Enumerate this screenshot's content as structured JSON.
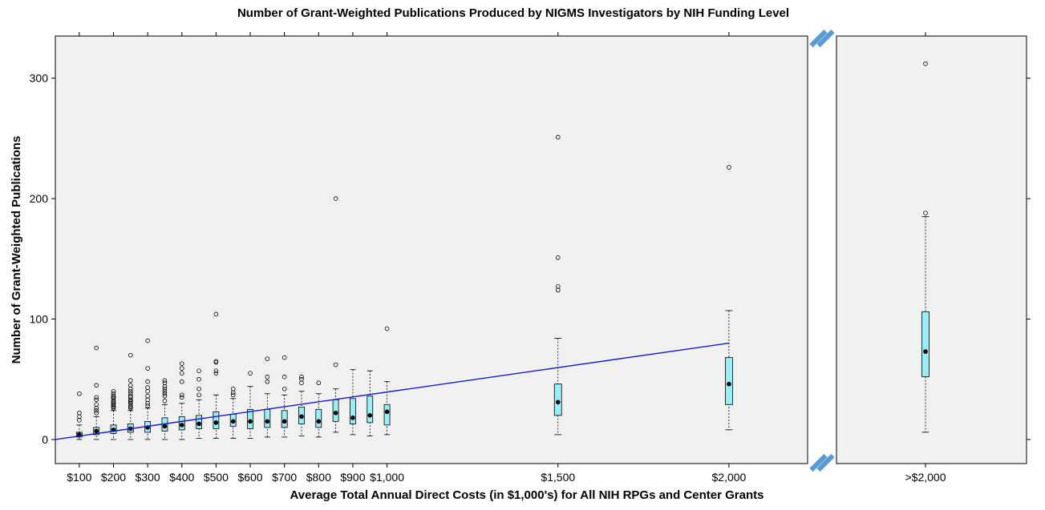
{
  "chart_data": {
    "type": "boxplot",
    "title": "Number of Grant-Weighted Publications Produced by NIGMS Investigators by NIH Funding Level",
    "xlabel": "Average Total Annual Direct Costs (in $1,000's) for All NIH RPGs and Center Grants",
    "ylabel": "Number of Grant-Weighted Publications",
    "xlim": [
      30,
      2230
    ],
    "ylim": [
      -20,
      335
    ],
    "x_ticks": [
      100,
      200,
      300,
      400,
      500,
      600,
      700,
      800,
      900,
      1000,
      1500,
      2000
    ],
    "x_tick_labels": [
      "$100",
      "$200",
      "$300",
      "$400",
      "$500",
      "$600",
      "$700",
      "$800",
      "$900",
      "$1,000",
      "$1,500",
      "$2,000"
    ],
    "y_ticks": [
      0,
      100,
      200,
      300
    ],
    "y_tick_labels": [
      "0",
      "100",
      "200",
      "300"
    ],
    "broken_axis_category": ">$2,000",
    "grid": false,
    "colors": {
      "panel": "#f1f1f1",
      "box_fill": "#99eef8",
      "trend_line": "#1a1ad6",
      "break_marker": "#5b9bd5"
    },
    "trend_line": {
      "x": [
        30,
        2000
      ],
      "y": [
        0,
        80
      ]
    },
    "boxes": [
      {
        "x": 100,
        "q1": 2,
        "median": 4,
        "q3": 6,
        "whisker_low": 0,
        "whisker_high": 12,
        "outliers": [
          16,
          19,
          22,
          38
        ]
      },
      {
        "x": 150,
        "q1": 4,
        "median": 7,
        "q3": 10,
        "whisker_low": 0,
        "whisker_high": 19,
        "outliers": [
          22,
          24,
          26,
          29,
          33,
          35,
          45,
          76
        ]
      },
      {
        "x": 200,
        "q1": 5,
        "median": 8,
        "q3": 12,
        "whisker_low": 0,
        "whisker_high": 24,
        "outliers": [
          26,
          27,
          28,
          29,
          30,
          31,
          32,
          34,
          35,
          36,
          38,
          40
        ]
      },
      {
        "x": 250,
        "q1": 6,
        "median": 9,
        "q3": 13,
        "whisker_low": 0,
        "whisker_high": 24,
        "outliers": [
          26,
          27,
          28,
          30,
          31,
          32,
          33,
          35,
          36,
          38,
          40,
          42,
          45,
          49,
          70
        ]
      },
      {
        "x": 300,
        "q1": 6,
        "median": 10,
        "q3": 15,
        "whisker_low": 0,
        "whisker_high": 26,
        "outliers": [
          28,
          30,
          33,
          36,
          40,
          43,
          48,
          59,
          82
        ]
      },
      {
        "x": 350,
        "q1": 7,
        "median": 11,
        "q3": 18,
        "whisker_low": 0,
        "whisker_high": 29,
        "outliers": [
          32,
          36,
          38,
          40,
          42,
          44,
          47,
          49
        ]
      },
      {
        "x": 400,
        "q1": 8,
        "median": 12,
        "q3": 19,
        "whisker_low": 0,
        "whisker_high": 30,
        "outliers": [
          35,
          37,
          48,
          55,
          59,
          63
        ]
      },
      {
        "x": 450,
        "q1": 9,
        "median": 13,
        "q3": 20,
        "whisker_low": 1,
        "whisker_high": 33,
        "outliers": [
          37,
          42,
          50,
          57
        ]
      },
      {
        "x": 500,
        "q1": 9,
        "median": 14,
        "q3": 23,
        "whisker_low": 1,
        "whisker_high": 37,
        "outliers": [
          55,
          57,
          64,
          65,
          104
        ]
      },
      {
        "x": 550,
        "q1": 11,
        "median": 15,
        "q3": 21,
        "whisker_low": 1,
        "whisker_high": 34,
        "outliers": [
          37,
          39,
          42
        ]
      },
      {
        "x": 600,
        "q1": 9,
        "median": 15,
        "q3": 25,
        "whisker_low": 1,
        "whisker_high": 44,
        "outliers": [
          55
        ]
      },
      {
        "x": 650,
        "q1": 10,
        "median": 15,
        "q3": 25,
        "whisker_low": 2,
        "whisker_high": 38,
        "outliers": [
          48,
          52,
          67
        ]
      },
      {
        "x": 700,
        "q1": 10,
        "median": 15,
        "q3": 24,
        "whisker_low": 2,
        "whisker_high": 37,
        "outliers": [
          42,
          52,
          68
        ]
      },
      {
        "x": 750,
        "q1": 13,
        "median": 19,
        "q3": 27,
        "whisker_low": 3,
        "whisker_high": 40,
        "outliers": [
          47,
          50,
          52
        ]
      },
      {
        "x": 800,
        "q1": 10,
        "median": 15,
        "q3": 25,
        "whisker_low": 2,
        "whisker_high": 38,
        "outliers": [
          47
        ]
      },
      {
        "x": 850,
        "q1": 15,
        "median": 22,
        "q3": 33,
        "whisker_low": 6,
        "whisker_high": 42,
        "outliers": [
          62,
          200
        ]
      },
      {
        "x": 900,
        "q1": 13,
        "median": 18,
        "q3": 34,
        "whisker_low": 4,
        "whisker_high": 58,
        "outliers": []
      },
      {
        "x": 950,
        "q1": 14,
        "median": 20,
        "q3": 36,
        "whisker_low": 3,
        "whisker_high": 57,
        "outliers": []
      },
      {
        "x": 1000,
        "q1": 12,
        "median": 23,
        "q3": 29,
        "whisker_low": 4,
        "whisker_high": 48,
        "outliers": [
          92
        ]
      },
      {
        "x": 1500,
        "q1": 20,
        "median": 31,
        "q3": 46,
        "whisker_low": 4,
        "whisker_high": 84,
        "outliers": [
          124,
          127,
          151,
          251
        ]
      },
      {
        "x": 2000,
        "q1": 29,
        "median": 46,
        "q3": 68,
        "whisker_low": 8,
        "whisker_high": 107,
        "outliers": [
          226
        ]
      },
      {
        "category": ">$2,000",
        "q1": 52,
        "median": 73,
        "q3": 106,
        "whisker_low": 6,
        "whisker_high": 185,
        "outliers": [
          188,
          312
        ]
      }
    ]
  }
}
